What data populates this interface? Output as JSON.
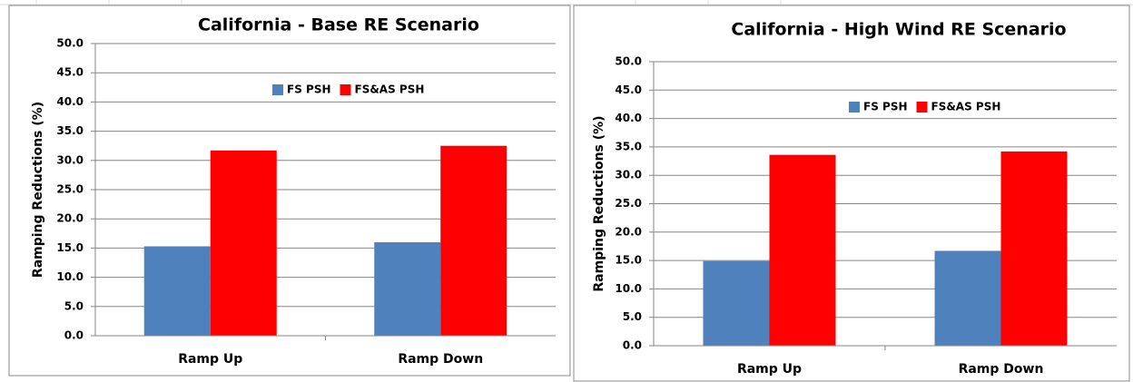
{
  "chart_data": [
    {
      "type": "bar",
      "title": "California - Base RE Scenario",
      "y_label": "Ramping  Reductions (%)",
      "categories": [
        "Ramp Up",
        "Ramp Down"
      ],
      "series": [
        {
          "name": "FS PSH",
          "color": "#4f81bd",
          "values": [
            15.3,
            16.0
          ]
        },
        {
          "name": "FS&AS PSH",
          "color": "#ff0000",
          "values": [
            31.7,
            32.5
          ]
        }
      ],
      "ylim": [
        0,
        50
      ],
      "yticks": [
        {
          "value": 0,
          "label": "0.0"
        },
        {
          "value": 5,
          "label": "5.0"
        },
        {
          "value": 10,
          "label": "10.0"
        },
        {
          "value": 15,
          "label": "15.0"
        },
        {
          "value": 20,
          "label": "20.0"
        },
        {
          "value": 25,
          "label": "25.0"
        },
        {
          "value": 30,
          "label": "30.0"
        },
        {
          "value": 35,
          "label": "35.0"
        },
        {
          "value": 40,
          "label": "40.0"
        },
        {
          "value": 45,
          "label": "45.0"
        },
        {
          "value": 50,
          "label": "50.0"
        }
      ],
      "grid": true,
      "legend": "top"
    },
    {
      "type": "bar",
      "title": "California - High Wind RE Scenario",
      "y_label": "Ramping Reductions (%)",
      "categories": [
        "Ramp Up",
        "Ramp Down"
      ],
      "series": [
        {
          "name": "FS PSH",
          "color": "#4f81bd",
          "values": [
            14.9,
            16.7
          ]
        },
        {
          "name": "FS&AS PSH",
          "color": "#ff0000",
          "values": [
            33.6,
            34.2
          ]
        }
      ],
      "ylim": [
        0,
        50
      ],
      "yticks": [
        {
          "value": 0,
          "label": "0.0"
        },
        {
          "value": 5,
          "label": "5.0"
        },
        {
          "value": 10,
          "label": "10.0"
        },
        {
          "value": 15,
          "label": "15.0"
        },
        {
          "value": 20,
          "label": "20.0"
        },
        {
          "value": 25,
          "label": "25.0"
        },
        {
          "value": 30,
          "label": "30.0"
        },
        {
          "value": 35,
          "label": "35.0"
        },
        {
          "value": 40,
          "label": "40.0"
        },
        {
          "value": 45,
          "label": "45.0"
        },
        {
          "value": 50,
          "label": "50.0"
        }
      ],
      "grid": true,
      "legend": "top"
    }
  ]
}
